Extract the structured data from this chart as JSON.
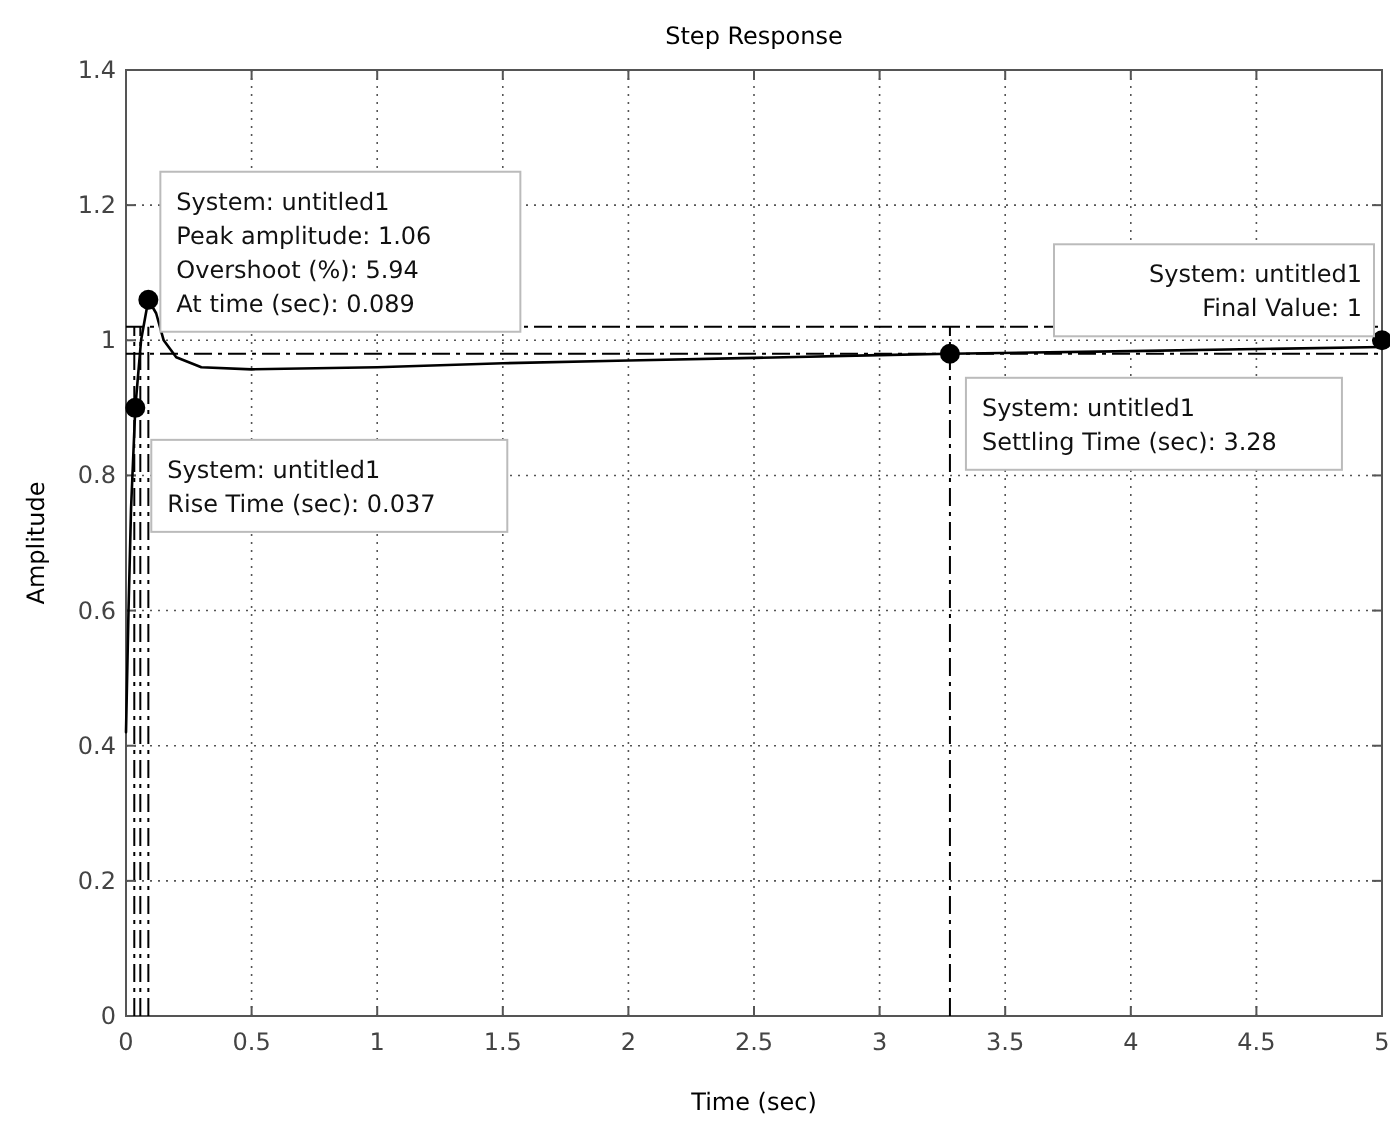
{
  "chart_data": {
    "type": "line",
    "title": "Step Response",
    "xlabel": "Time (sec)",
    "ylabel": "Amplitude",
    "x": [
      0,
      0.01,
      0.02,
      0.037,
      0.06,
      0.089,
      0.12,
      0.15,
      0.2,
      0.3,
      0.5,
      1.0,
      1.5,
      2.0,
      2.5,
      3.0,
      3.28,
      4.0,
      4.5,
      5.0
    ],
    "series": [
      {
        "color": "#000000",
        "values": [
          0.42,
          0.6,
          0.75,
          0.9,
          1.0,
          1.06,
          1.04,
          1.0,
          0.975,
          0.96,
          0.957,
          0.96,
          0.966,
          0.97,
          0.974,
          0.978,
          0.98,
          0.984,
          0.987,
          0.99
        ]
      }
    ],
    "xlim": [
      0,
      5
    ],
    "ylim": [
      0,
      1.4
    ],
    "xticks": [
      0,
      0.5,
      1,
      1.5,
      2,
      2.5,
      3,
      3.5,
      4,
      4.5,
      5
    ],
    "yticks": [
      0,
      0.2,
      0.4,
      0.6,
      0.8,
      1,
      1.2,
      1.4
    ],
    "grid": true,
    "marker": "none",
    "line_style": "solid",
    "ref_lines": [
      {
        "axis": "y",
        "value": 1.02,
        "line_style": "dashed",
        "color": "#000000"
      },
      {
        "axis": "y",
        "value": 0.98,
        "line_style": "dashed",
        "color": "#000000"
      },
      {
        "axis": "x",
        "value": 0.033,
        "line_style": "dashed",
        "color": "#000000"
      },
      {
        "axis": "x",
        "value": 0.057,
        "line_style": "dashed",
        "color": "#000000"
      },
      {
        "axis": "x",
        "value": 0.089,
        "line_style": "dashed",
        "color": "#000000"
      },
      {
        "axis": "x",
        "value": 3.28,
        "line_style": "dashed",
        "color": "#000000"
      }
    ],
    "annotations": [
      {
        "text": "System: untitled1\nPeak amplitude: 1.06\nOvershoot (%): 5.94\nAt time (sec): 0.089",
        "x": 0.089,
        "y": 1.06
      },
      {
        "text": "System: untitled1\nRise Time (sec): 0.037",
        "x": 0.037,
        "y": 0.9
      },
      {
        "text": "System: untitled1\nSettling Time (sec): 3.28",
        "x": 3.28,
        "y": 0.98
      },
      {
        "text": "System: untitled1\nFinal Value: 1",
        "x": 5,
        "y": 1
      }
    ]
  }
}
